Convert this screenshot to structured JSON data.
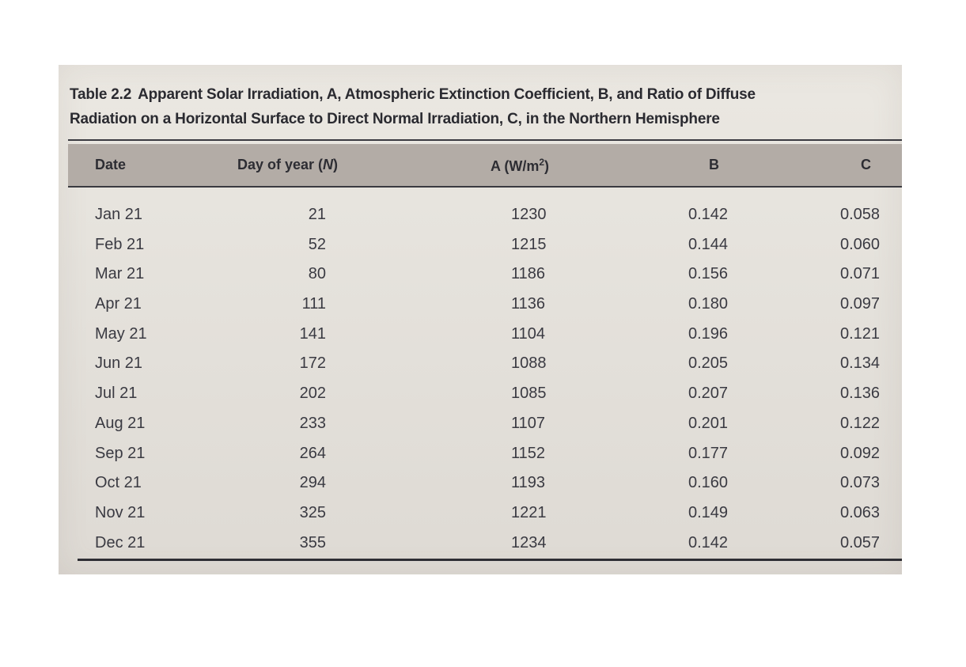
{
  "caption": {
    "label": "Table 2.2",
    "line1": "Apparent Solar Irradiation, A, Atmospheric Extinction Coefficient, B, and Ratio of Diffuse",
    "line2": "Radiation on a Horizontal Surface to Direct Normal Irradiation, C, in the Northern Hemisphere"
  },
  "headers": {
    "date": "Date",
    "day_prefix": "Day of year (",
    "day_var": "N",
    "day_suffix": ")",
    "a_prefix": "A (W/m",
    "a_sup": "2",
    "a_suffix": ")",
    "b": "B",
    "c": "C"
  },
  "rows": [
    {
      "date": "Jan 21",
      "day": "21",
      "a": "1230",
      "b": "0.142",
      "c": "0.058"
    },
    {
      "date": "Feb 21",
      "day": "52",
      "a": "1215",
      "b": "0.144",
      "c": "0.060"
    },
    {
      "date": "Mar 21",
      "day": "80",
      "a": "1186",
      "b": "0.156",
      "c": "0.071"
    },
    {
      "date": "Apr 21",
      "day": "111",
      "a": "1136",
      "b": "0.180",
      "c": "0.097"
    },
    {
      "date": "May 21",
      "day": "141",
      "a": "1104",
      "b": "0.196",
      "c": "0.121"
    },
    {
      "date": "Jun 21",
      "day": "172",
      "a": "1088",
      "b": "0.205",
      "c": "0.134"
    },
    {
      "date": "Jul 21",
      "day": "202",
      "a": "1085",
      "b": "0.207",
      "c": "0.136"
    },
    {
      "date": "Aug 21",
      "day": "233",
      "a": "1107",
      "b": "0.201",
      "c": "0.122"
    },
    {
      "date": "Sep 21",
      "day": "264",
      "a": "1152",
      "b": "0.177",
      "c": "0.092"
    },
    {
      "date": "Oct 21",
      "day": "294",
      "a": "1193",
      "b": "0.160",
      "c": "0.073"
    },
    {
      "date": "Nov 21",
      "day": "325",
      "a": "1221",
      "b": "0.149",
      "c": "0.063"
    },
    {
      "date": "Dec 21",
      "day": "355",
      "a": "1234",
      "b": "0.142",
      "c": "0.057"
    }
  ],
  "colors": {
    "paper": "#e6e3dd",
    "header_band": "#b3aca6",
    "text": "#3a3a42",
    "rule": "#3a3a40"
  }
}
